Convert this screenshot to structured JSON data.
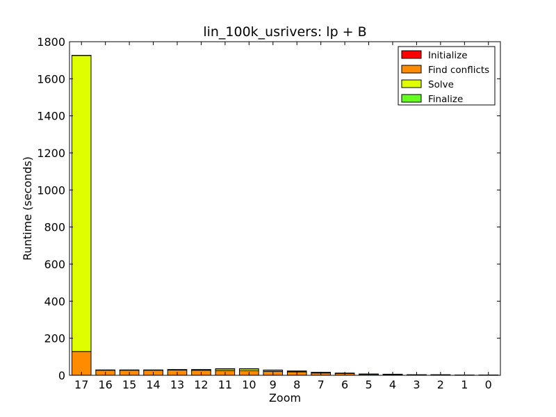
{
  "chart_data": {
    "type": "bar",
    "stacked": true,
    "title": "lin_100k_usrivers: lp + B",
    "xlabel": "Zoom",
    "ylabel": "Runtime (seconds)",
    "ylim": [
      0,
      1800
    ],
    "yticks": [
      0,
      200,
      400,
      600,
      800,
      1000,
      1200,
      1400,
      1600,
      1800
    ],
    "categories": [
      "17",
      "16",
      "15",
      "14",
      "13",
      "12",
      "11",
      "10",
      "9",
      "8",
      "7",
      "6",
      "5",
      "4",
      "3",
      "2",
      "1",
      "0"
    ],
    "series": [
      {
        "name": "Initialize",
        "color": "#ff0000",
        "values": [
          0.5,
          0.5,
          0.5,
          0.5,
          0.5,
          0.5,
          0.5,
          0.5,
          0.5,
          0.5,
          0.5,
          0.5,
          0.5,
          0.5,
          0.3,
          0.3,
          0.3,
          0.3
        ]
      },
      {
        "name": "Find conflicts",
        "color": "#ff8c00",
        "values": [
          128,
          27,
          27,
          27,
          28,
          27,
          25,
          24,
          20,
          18,
          12,
          9,
          5,
          4,
          2,
          2,
          1,
          1
        ]
      },
      {
        "name": "Solve",
        "color": "#dfff00",
        "values": [
          1597,
          1,
          1,
          1,
          2,
          3,
          9,
          10,
          7,
          4,
          3,
          2,
          1,
          1,
          0.5,
          0.5,
          0.5,
          0.5
        ]
      },
      {
        "name": "Finalize",
        "color": "#66ff22",
        "values": [
          1,
          0.5,
          0.5,
          0.5,
          0.5,
          0.5,
          1,
          1,
          1,
          1,
          0.5,
          0.5,
          0.5,
          0.5,
          0.2,
          0.2,
          0.2,
          0.2
        ]
      }
    ],
    "legend": {
      "position": "top-right"
    },
    "grid": false
  }
}
